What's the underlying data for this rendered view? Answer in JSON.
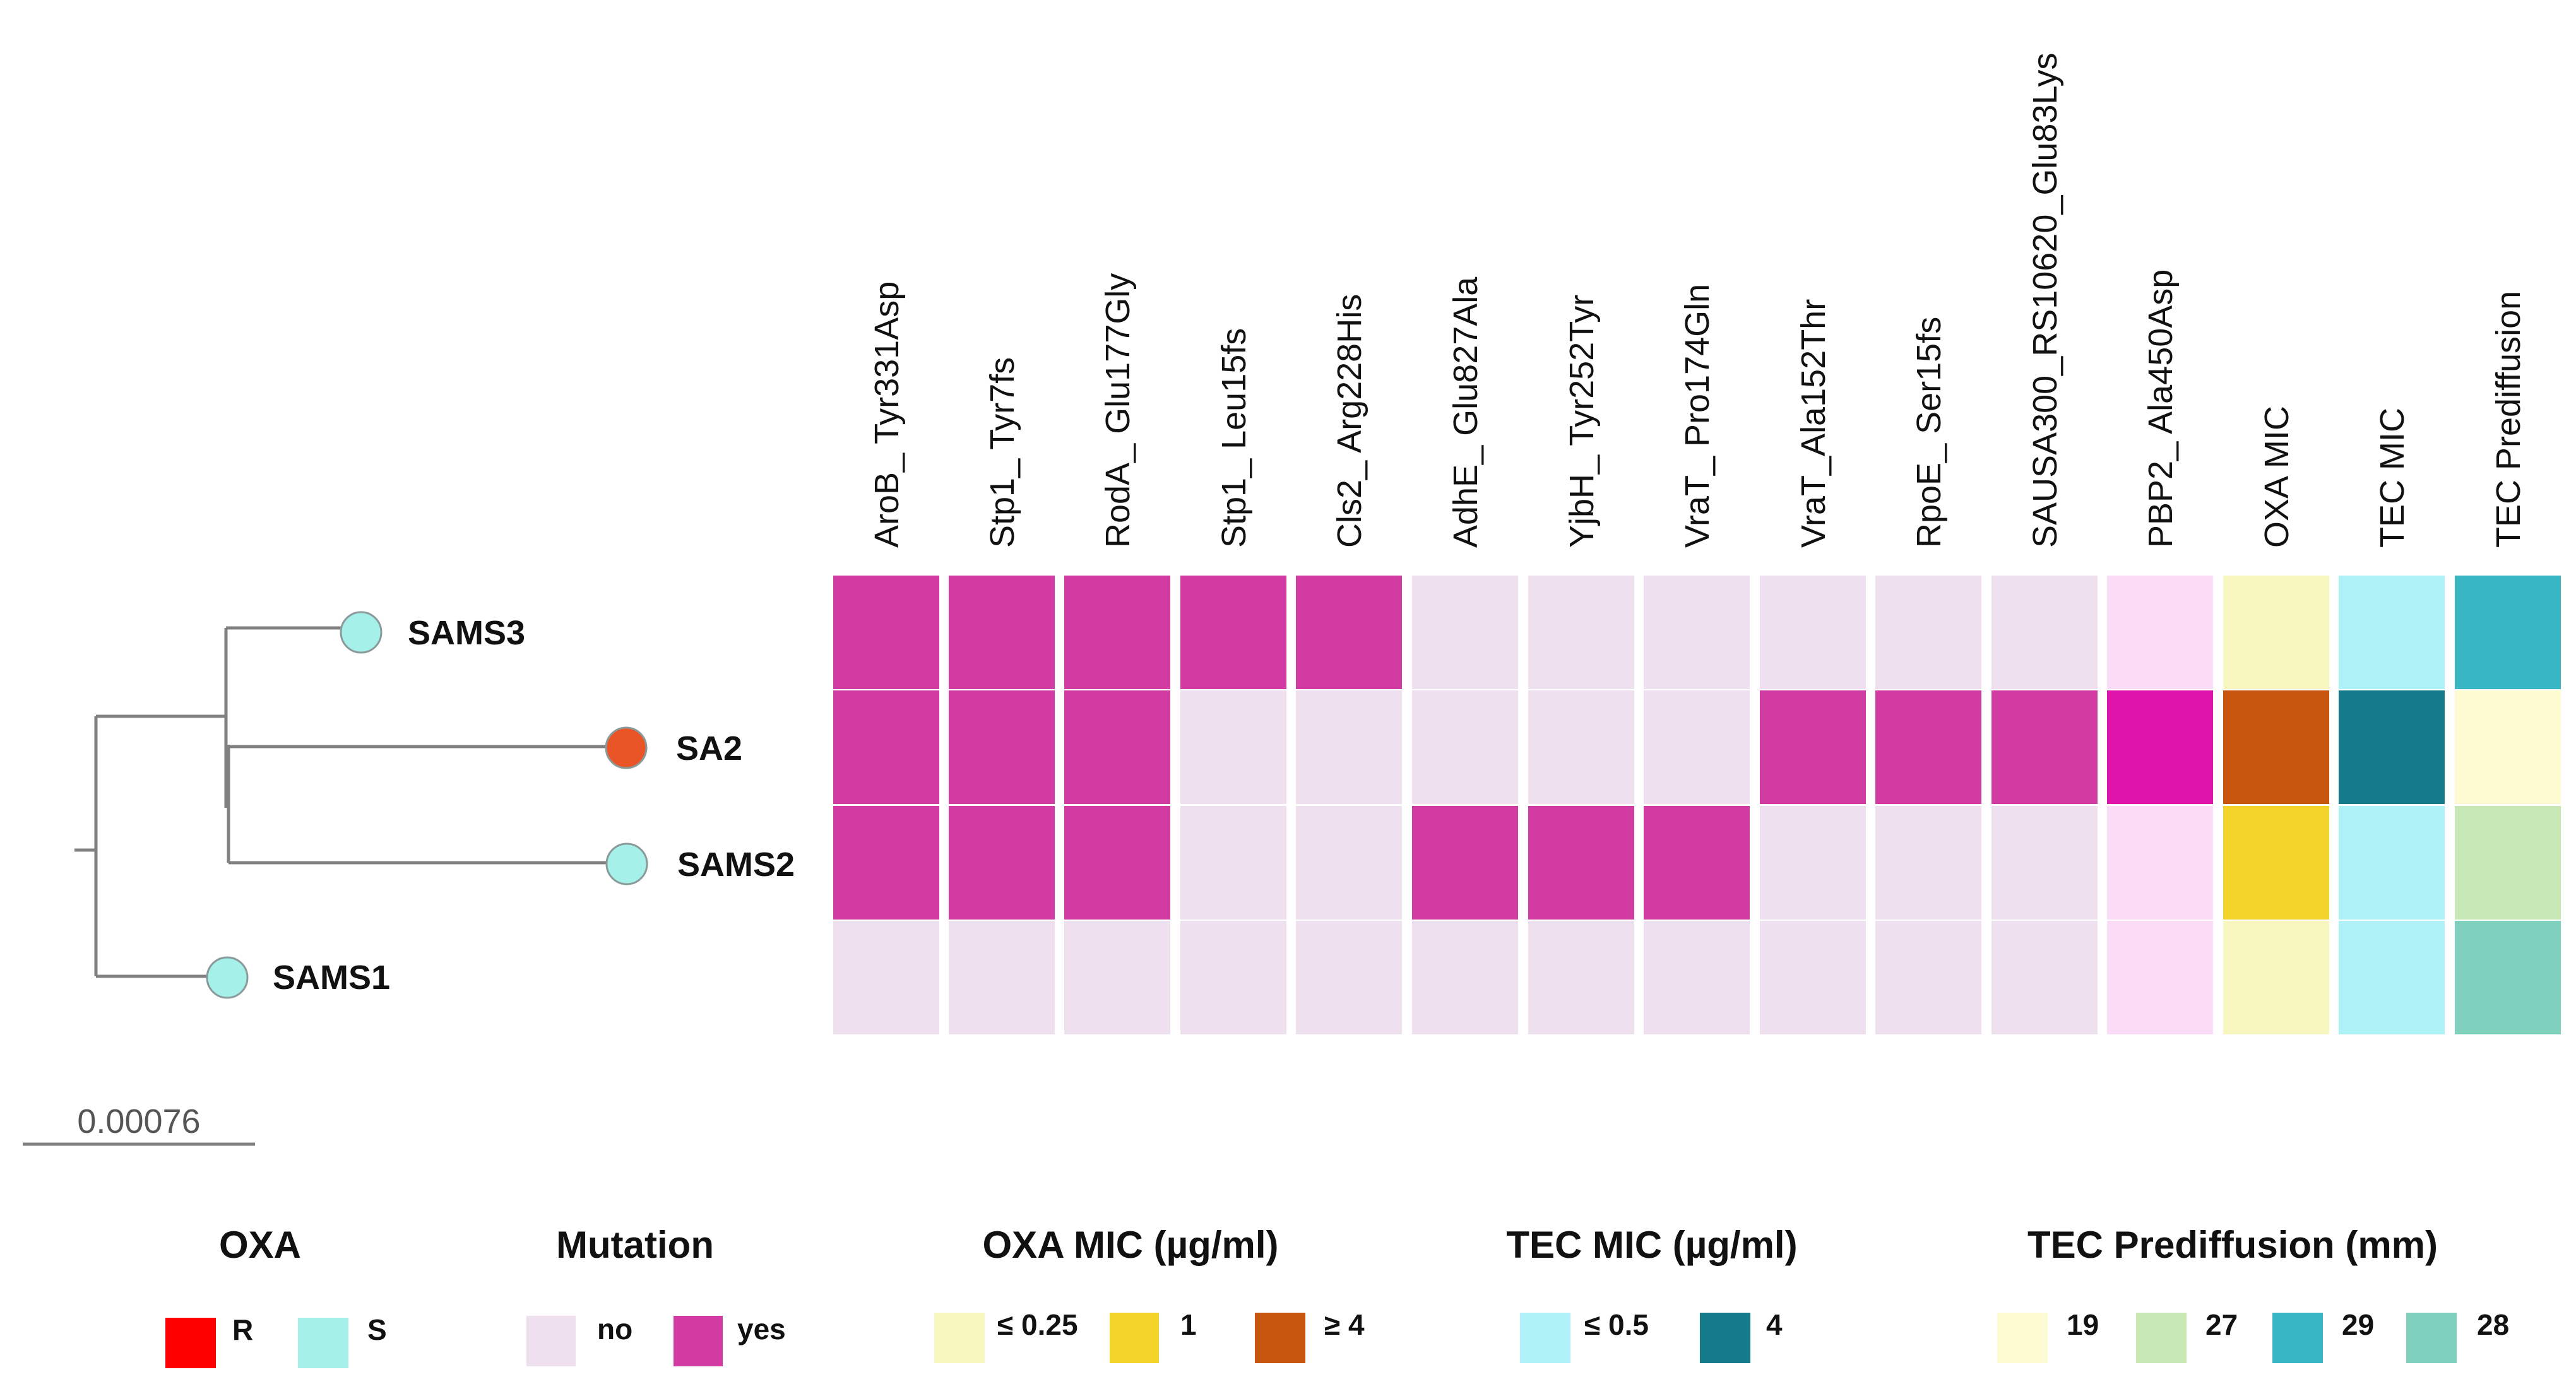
{
  "columns": [
    "AroB_ Tyr331Asp",
    "Stp1_ Tyr7fs",
    "RodA_ Glu177Gly",
    "Stp1_ Leu15fs",
    "Cls2_ Arg228His",
    "AdhE_ Glu827Ala",
    "YjbH_ Tyr252Tyr",
    "VraT_ Pro174Gln",
    "VraT_Ala152Thr",
    "RpoE_ Ser15fs",
    "SAUSA300_RS10620_Glu83Lys",
    "PBP2_ Ala450Asp",
    "OXA MIC",
    "TEC MIC",
    "TEC Prediffusion"
  ],
  "samples": [
    {
      "name": "SAMS3",
      "oxa": "S"
    },
    {
      "name": "SA2",
      "oxa": "R"
    },
    {
      "name": "SAMS2",
      "oxa": "S"
    },
    {
      "name": "SAMS1",
      "oxa": "S"
    }
  ],
  "mutation_matrix": [
    [
      1,
      1,
      1,
      1,
      1,
      0,
      0,
      0,
      0,
      0,
      0,
      0
    ],
    [
      1,
      1,
      1,
      0,
      0,
      0,
      0,
      0,
      1,
      1,
      1,
      1
    ],
    [
      1,
      1,
      1,
      0,
      0,
      1,
      1,
      1,
      0,
      0,
      0,
      0
    ],
    [
      0,
      0,
      0,
      0,
      0,
      0,
      0,
      0,
      0,
      0,
      0,
      0
    ]
  ],
  "oxa_mic": [
    "≤ 0.25",
    "≥ 4",
    "1",
    "≤ 0.25"
  ],
  "tec_mic": [
    "≤ 0.5",
    "4",
    "≤ 0.5",
    "≤ 0.5"
  ],
  "tec_prediffusion": [
    "29",
    "19",
    "27",
    "28"
  ],
  "scale_bar": "0.00076",
  "legend": {
    "oxa": {
      "title": "OXA",
      "items": [
        {
          "label": "R",
          "color": "#ff0000"
        },
        {
          "label": "S",
          "color": "#a6f0ea"
        }
      ]
    },
    "mutation": {
      "title": "Mutation",
      "items": [
        {
          "label": "no",
          "color": "#efe0f0"
        },
        {
          "label": "yes",
          "color": "#d23ba2"
        }
      ]
    },
    "oxa_mic": {
      "title": "OXA MIC (µg/ml)",
      "items": [
        {
          "label": "≤ 0.25",
          "color": "#f9f7c0"
        },
        {
          "label": "1",
          "color": "#f3d22a"
        },
        {
          "label": "≥ 4",
          "color": "#c9560f"
        }
      ]
    },
    "tec_mic": {
      "title": "TEC MIC (µg/ml)",
      "items": [
        {
          "label": "≤ 0.5",
          "color": "#aef2f7"
        },
        {
          "label": "4",
          "color": "#137b8a"
        }
      ]
    },
    "tec_pre": {
      "title": "TEC Prediffusion (mm)",
      "items": [
        {
          "label": "19",
          "color": "#fdfbd2"
        },
        {
          "label": "27",
          "color": "#c7e8b5"
        },
        {
          "label": "29",
          "color": "#38b6c4"
        },
        {
          "label": "28",
          "color": "#7fd0bd"
        }
      ]
    }
  },
  "colors": {
    "mut_no": "#efe0f0",
    "mut_yes": "#d23ba2",
    "pbp2_no": "#fadcf6",
    "pbp2_yes": "#de14ad",
    "tree_line": "#808080",
    "tip_S": "#a6f0ea",
    "tip_R": "#ea5527",
    "tip_stroke": "#8a9a9a"
  }
}
